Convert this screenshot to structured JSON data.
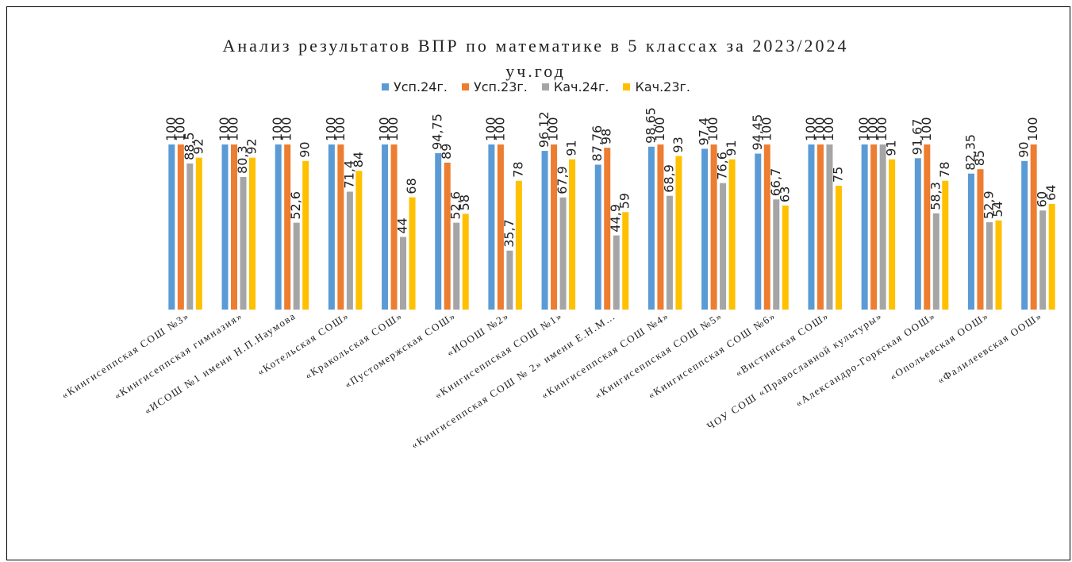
{
  "chart_data": {
    "type": "bar",
    "title": "Анализ результатов ВПР по математике в 5 классах за 2023/2024 уч.год",
    "categories": [
      "«Кингисеппская СОШ №3»",
      "«Кингисеппская гимназия»",
      "«ИСОШ №1 имени Н.П.Наумова",
      "«Котельская СОШ»",
      "«Кракольская СОШ»",
      "«Пустомержская СОШ»",
      "«ИООШ №2»",
      "«Кингисеппская СОШ №1»",
      "«Кингисеппская СОШ № 2» имени Е.Н.М…",
      "«Кингисеппская СОШ №4»",
      "«Кингисеппская СОШ №5»",
      "«Кингисеппская СОШ №6»",
      "«Вистинская СОШ»",
      "ЧОУ СОШ «Православной культуры»",
      "«Александро-Горкская ООШ»",
      "«Опольевская ООШ»",
      "«Фалилеевская ООШ»"
    ],
    "series": [
      {
        "name": "Усп.24г.",
        "color": "#5b9bd5",
        "values": [
          100,
          100,
          100,
          100,
          100,
          94.75,
          100,
          96.12,
          87.76,
          98.65,
          97.4,
          94.45,
          100,
          100,
          91.67,
          82.35,
          90
        ],
        "value_labels": [
          "100",
          "100",
          "100",
          "100",
          "100",
          "94,75",
          "100",
          "96,12",
          "87,76",
          "98,65",
          "97,4",
          "94,45",
          "100",
          "100",
          "91,67",
          "82,35",
          "90"
        ]
      },
      {
        "name": "Усп.23г.",
        "color": "#ed7d31",
        "values": [
          100,
          100,
          100,
          100,
          100,
          89,
          100,
          100,
          98,
          100,
          100,
          100,
          100,
          100,
          100,
          85,
          100
        ],
        "value_labels": [
          "100",
          "100",
          "100",
          "100",
          "100",
          "89",
          "100",
          "100",
          "98",
          "100",
          "100",
          "100",
          "100",
          "100",
          "100",
          "85",
          "100"
        ]
      },
      {
        "name": "Кач.24г.",
        "color": "#a5a5a5",
        "values": [
          88.5,
          80.3,
          52.6,
          71.4,
          44,
          52.6,
          35.7,
          67.9,
          44.9,
          68.9,
          76.6,
          66.7,
          100,
          100,
          58.3,
          52.9,
          60
        ],
        "value_labels": [
          "88,5",
          "80,3",
          "52,6",
          "71,4",
          "44",
          "52,6",
          "35,7",
          "67,9",
          "44,9",
          "68,9",
          "76,6",
          "66,7",
          "100",
          "100",
          "58,3",
          "52,9",
          "60"
        ]
      },
      {
        "name": "Кач.23г.",
        "color": "#ffc000",
        "values": [
          92,
          92,
          90,
          84,
          68,
          58,
          78,
          91,
          59,
          93,
          91,
          63,
          75,
          91,
          78,
          54,
          64
        ],
        "value_labels": [
          "92",
          "92",
          "90",
          "84",
          "68",
          "58",
          "78",
          "91",
          "59",
          "93",
          "91",
          "63",
          "75",
          "91",
          "78",
          "54",
          "64"
        ]
      }
    ],
    "ylim": [
      0,
      100
    ],
    "grid": false
  }
}
